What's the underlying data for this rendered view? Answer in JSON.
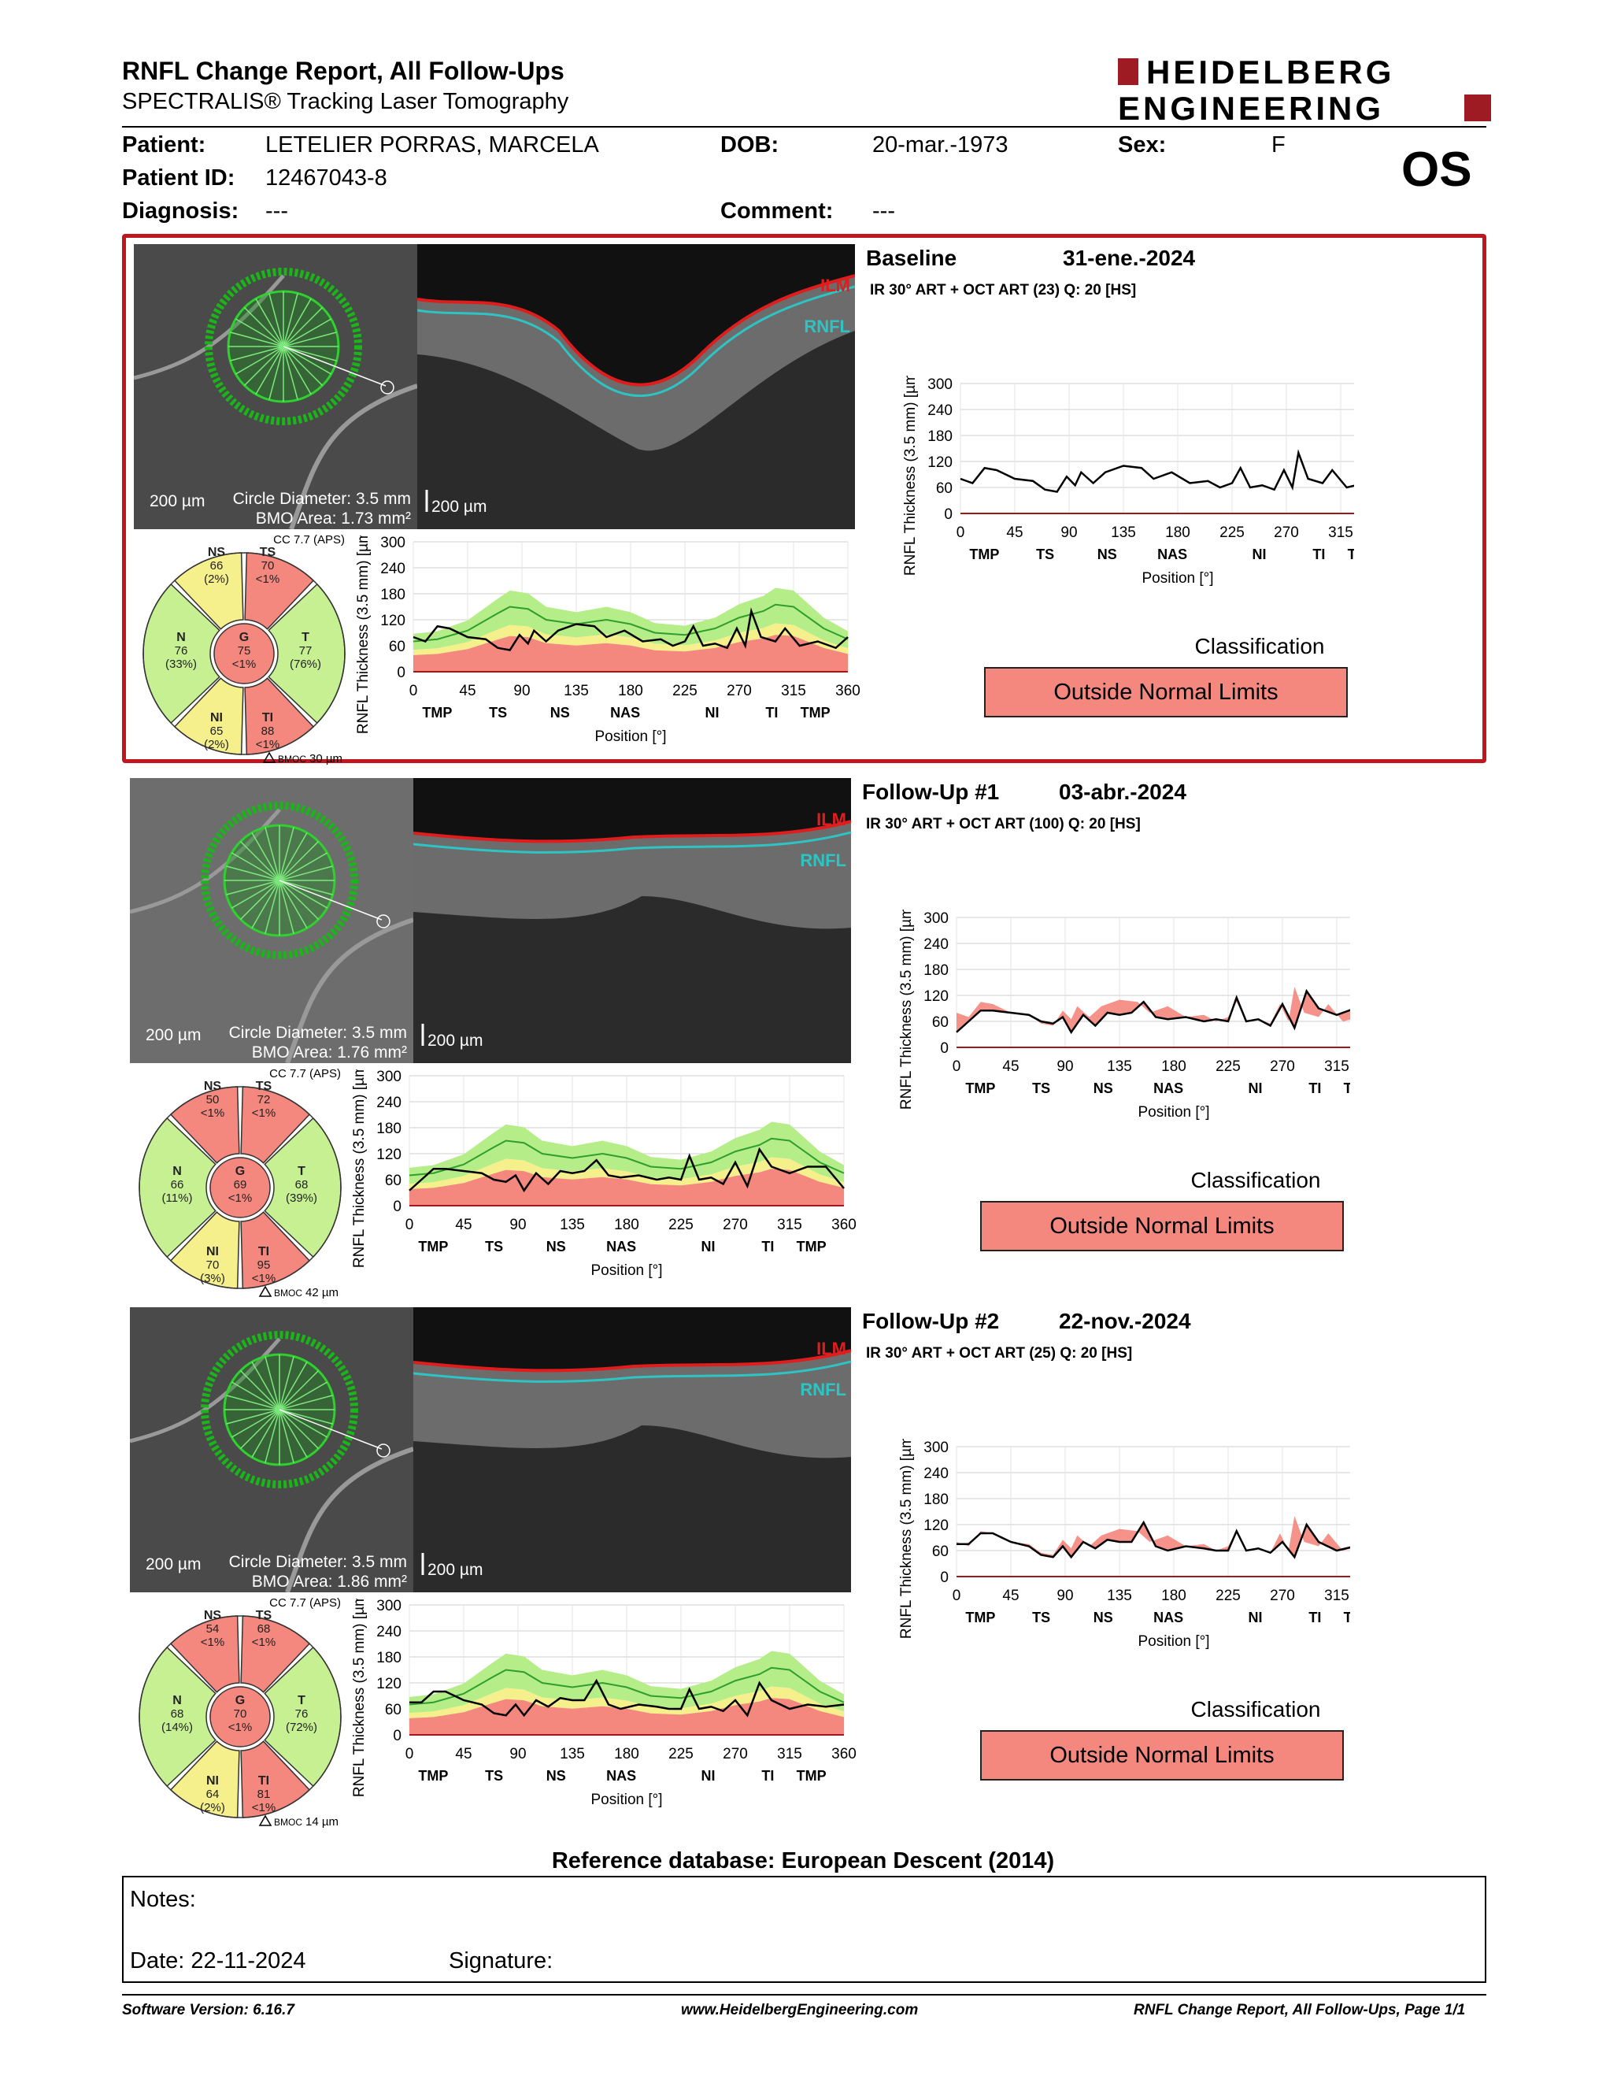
{
  "header": {
    "title": "RNFL Change Report, All Follow-Ups",
    "subtitle": "SPECTRALIS® Tracking Laser Tomography",
    "logo_line1": "HEIDELBERG",
    "logo_line2": "ENGINEERING",
    "eye": "OS"
  },
  "patient": {
    "patient_label": "Patient:",
    "patient_value": "LETELIER PORRAS, MARCELA",
    "dob_label": "DOB:",
    "dob_value": "20-mar.-1973",
    "sex_label": "Sex:",
    "sex_value": "F",
    "id_label": "Patient ID:",
    "id_value": "12467043-8",
    "diagnosis_label": "Diagnosis:",
    "diagnosis_value": "---",
    "comment_label": "Comment:",
    "comment_value": "---"
  },
  "common": {
    "scale_label": "200 µm",
    "circle_diameter": "Circle Diameter: 3.5 mm",
    "cc_label": "CC 7.7 (APS)",
    "ilm": "ILM",
    "rnfl": "RNFL",
    "y_axis_label": "RNFL Thickness (3.5 mm) [µm]",
    "x_axis_label": "Position [°]",
    "y_ticks": [
      "0",
      "60",
      "120",
      "180",
      "240",
      "300"
    ],
    "x_ticks": [
      "0",
      "45",
      "90",
      "135",
      "180",
      "225",
      "270",
      "315",
      "360"
    ],
    "sector_labels": [
      "TMP",
      "TS",
      "NS",
      "NAS",
      "NI",
      "TI",
      "TMP"
    ],
    "classification_label": "Classification",
    "bmoc_prefix": "BMOC"
  },
  "panels": [
    {
      "title": "Baseline",
      "date": "31-ene.-2024",
      "acq": "IR 30° ART + OCT ART (23) Q: 20 [HS]",
      "bmo_area": "BMO Area: 1.73 mm²",
      "delta_bmoc": "30 µm",
      "classification": "Outside Normal Limits",
      "sectors": {
        "NS": [
          "NS",
          "66",
          "(2%)"
        ],
        "TS": [
          "TS",
          "70",
          "<1%"
        ],
        "N": [
          "N",
          "76",
          "(33%)"
        ],
        "G": [
          "G",
          "75",
          "<1%"
        ],
        "T": [
          "T",
          "77",
          "(76%)"
        ],
        "NI": [
          "NI",
          "65",
          "(2%)"
        ],
        "TI": [
          "TI",
          "88",
          "<1%"
        ]
      },
      "colors": {
        "NS": "#f6f08c",
        "TS": "#f4877e",
        "N": "#c7f093",
        "G": "#f4877e",
        "T": "#c7f093",
        "NI": "#f6f08c",
        "TI": "#f4877e"
      }
    },
    {
      "title": "Follow-Up #1",
      "date": "03-abr.-2024",
      "acq": "IR 30° ART + OCT ART (100) Q: 20 [HS]",
      "bmo_area": "BMO Area: 1.76 mm²",
      "delta_bmoc": "42 µm",
      "classification": "Outside Normal Limits",
      "sectors": {
        "NS": [
          "NS",
          "50",
          "<1%"
        ],
        "TS": [
          "TS",
          "72",
          "<1%"
        ],
        "N": [
          "N",
          "66",
          "(11%)"
        ],
        "G": [
          "G",
          "69",
          "<1%"
        ],
        "T": [
          "T",
          "68",
          "(39%)"
        ],
        "NI": [
          "NI",
          "70",
          "(3%)"
        ],
        "TI": [
          "TI",
          "95",
          "<1%"
        ]
      },
      "colors": {
        "NS": "#f4877e",
        "TS": "#f4877e",
        "N": "#c7f093",
        "G": "#f4877e",
        "T": "#c7f093",
        "NI": "#f6f08c",
        "TI": "#f4877e"
      }
    },
    {
      "title": "Follow-Up #2",
      "date": "22-nov.-2024",
      "acq": "IR 30° ART + OCT ART (25) Q: 20 [HS]",
      "bmo_area": "BMO Area: 1.86 mm²",
      "delta_bmoc": "14 µm",
      "classification": "Outside Normal Limits",
      "sectors": {
        "NS": [
          "NS",
          "54",
          "<1%"
        ],
        "TS": [
          "TS",
          "68",
          "<1%"
        ],
        "N": [
          "N",
          "68",
          "(14%)"
        ],
        "G": [
          "G",
          "70",
          "<1%"
        ],
        "T": [
          "T",
          "76",
          "(72%)"
        ],
        "NI": [
          "NI",
          "64",
          "(2%)"
        ],
        "TI": [
          "TI",
          "81",
          "<1%"
        ]
      },
      "colors": {
        "NS": "#f4877e",
        "TS": "#f4877e",
        "N": "#c7f093",
        "G": "#f4877e",
        "T": "#c7f093",
        "NI": "#f6f08c",
        "TI": "#f4877e"
      }
    }
  ],
  "chart_data": {
    "type": "line",
    "x_range": [
      0,
      360
    ],
    "ylim": [
      0,
      300
    ],
    "ylabel": "RNFL Thickness (3.5 mm) [µm]",
    "xlabel": "Position [°]",
    "normal_mean": {
      "x": [
        0,
        20,
        45,
        70,
        80,
        95,
        110,
        135,
        160,
        180,
        200,
        225,
        250,
        270,
        290,
        300,
        315,
        340,
        360
      ],
      "y": [
        70,
        75,
        95,
        135,
        150,
        145,
        120,
        110,
        120,
        110,
        90,
        85,
        100,
        125,
        140,
        155,
        150,
        100,
        75
      ]
    },
    "series": [
      {
        "name": "Baseline",
        "x": [
          0,
          10,
          20,
          30,
          45,
          60,
          70,
          80,
          88,
          95,
          100,
          110,
          120,
          135,
          150,
          160,
          175,
          190,
          205,
          215,
          225,
          232,
          240,
          250,
          260,
          268,
          275,
          280,
          288,
          300,
          308,
          320,
          335,
          350,
          360
        ],
        "y": [
          80,
          70,
          105,
          100,
          80,
          75,
          55,
          50,
          85,
          65,
          95,
          70,
          95,
          110,
          105,
          80,
          95,
          70,
          75,
          60,
          70,
          105,
          60,
          65,
          55,
          100,
          60,
          140,
          80,
          70,
          100,
          60,
          70,
          55,
          80
        ]
      },
      {
        "name": "Follow-Up #1",
        "x": [
          0,
          10,
          20,
          30,
          45,
          60,
          70,
          80,
          88,
          95,
          105,
          115,
          125,
          135,
          145,
          155,
          165,
          175,
          190,
          205,
          215,
          225,
          232,
          240,
          250,
          260,
          270,
          280,
          290,
          300,
          315,
          330,
          345,
          360
        ],
        "y": [
          35,
          60,
          85,
          85,
          80,
          75,
          60,
          55,
          70,
          35,
          75,
          50,
          80,
          75,
          80,
          105,
          70,
          65,
          70,
          60,
          65,
          60,
          115,
          60,
          65,
          50,
          100,
          45,
          130,
          90,
          75,
          90,
          90,
          40
        ]
      },
      {
        "name": "Follow-Up #2",
        "x": [
          0,
          10,
          20,
          30,
          45,
          60,
          70,
          80,
          88,
          95,
          105,
          115,
          125,
          135,
          145,
          155,
          165,
          175,
          190,
          205,
          215,
          225,
          232,
          240,
          250,
          260,
          270,
          280,
          290,
          300,
          315,
          330,
          345,
          360
        ],
        "y": [
          75,
          75,
          100,
          100,
          80,
          70,
          50,
          45,
          70,
          45,
          80,
          65,
          85,
          80,
          80,
          125,
          70,
          60,
          70,
          65,
          60,
          60,
          105,
          60,
          65,
          55,
          80,
          45,
          120,
          80,
          60,
          70,
          65,
          70
        ]
      }
    ]
  },
  "reference": "Reference database: European Descent (2014)",
  "notes": {
    "notes_label": "Notes:",
    "date_label": "Date: 22-11-2024",
    "signature_label": "Signature:"
  },
  "footer": {
    "software": "Software Version: 6.16.7",
    "website": "www.HeidelbergEngineering.com",
    "page": "RNFL Change Report, All Follow-Ups, Page 1/1"
  }
}
